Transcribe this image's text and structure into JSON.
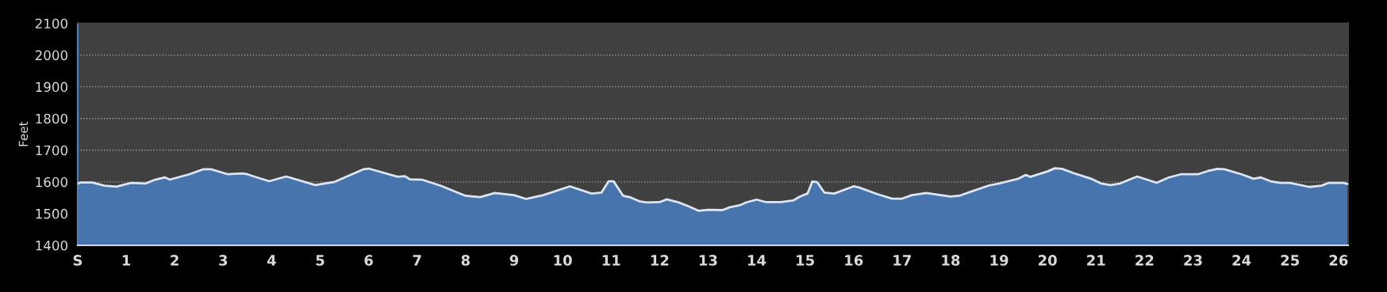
{
  "chart_data": {
    "type": "area",
    "ylabel": "Feet",
    "xlim": [
      0,
      26.2
    ],
    "ylim": [
      1400,
      2100
    ],
    "xticks": [
      {
        "value": 0,
        "label": "S"
      },
      1,
      2,
      3,
      4,
      5,
      6,
      7,
      8,
      9,
      10,
      11,
      12,
      13,
      14,
      15,
      16,
      17,
      18,
      19,
      20,
      21,
      22,
      23,
      24,
      25,
      26
    ],
    "yticks": [
      1400,
      1500,
      1600,
      1700,
      1800,
      1900,
      2000,
      2100
    ],
    "grid": "y",
    "line_style": "solid",
    "series": [
      {
        "color": "#4774ad",
        "x": [
          0,
          0.05,
          0.3,
          0.55,
          0.8,
          1.1,
          1.4,
          1.6,
          1.8,
          1.9,
          2.3,
          2.6,
          2.75,
          3.1,
          3.4,
          3.5,
          3.7,
          3.95,
          4.3,
          4.9,
          5.3,
          5.9,
          6.0,
          6.6,
          6.75,
          6.85,
          7.1,
          7.5,
          8.0,
          8.3,
          8.6,
          9.0,
          9.25,
          9.6,
          10.15,
          10.6,
          10.8,
          10.95,
          11.05,
          11.25,
          11.4,
          11.6,
          11.75,
          12.0,
          12.15,
          12.4,
          12.6,
          12.8,
          13.0,
          13.3,
          13.45,
          13.65,
          13.8,
          14.0,
          14.2,
          14.5,
          14.75,
          14.9,
          15.05,
          15.15,
          15.25,
          15.4,
          15.6,
          16.0,
          16.1,
          16.5,
          16.8,
          17.0,
          17.2,
          17.5,
          18.0,
          18.2,
          18.4,
          18.8,
          19.0,
          19.4,
          19.55,
          19.65,
          20.0,
          20.15,
          20.3,
          20.55,
          20.9,
          21.1,
          21.3,
          21.5,
          21.85,
          22.25,
          22.5,
          22.75,
          23.1,
          23.3,
          23.5,
          23.65,
          24.0,
          24.25,
          24.4,
          24.6,
          24.8,
          25.0,
          25.4,
          25.65,
          25.8,
          26.1,
          26.2
        ],
        "values": [
          1594,
          1598,
          1598,
          1588,
          1585,
          1597,
          1595,
          1607,
          1614,
          1607,
          1624,
          1640,
          1640,
          1624,
          1627,
          1624,
          1614,
          1602,
          1617,
          1590,
          1600,
          1640,
          1642,
          1616,
          1618,
          1608,
          1607,
          1587,
          1556,
          1552,
          1565,
          1558,
          1546,
          1558,
          1586,
          1563,
          1566,
          1602,
          1602,
          1556,
          1551,
          1538,
          1535,
          1536,
          1545,
          1535,
          1523,
          1509,
          1512,
          1511,
          1520,
          1526,
          1536,
          1544,
          1536,
          1536,
          1541,
          1554,
          1563,
          1601,
          1599,
          1566,
          1563,
          1586,
          1583,
          1561,
          1547,
          1547,
          1558,
          1565,
          1554,
          1557,
          1568,
          1589,
          1595,
          1610,
          1622,
          1616,
          1633,
          1643,
          1641,
          1627,
          1610,
          1595,
          1590,
          1595,
          1617,
          1597,
          1614,
          1624,
          1624,
          1634,
          1641,
          1640,
          1624,
          1610,
          1614,
          1602,
          1597,
          1597,
          1584,
          1588,
          1597,
          1597,
          1593
        ]
      }
    ]
  }
}
